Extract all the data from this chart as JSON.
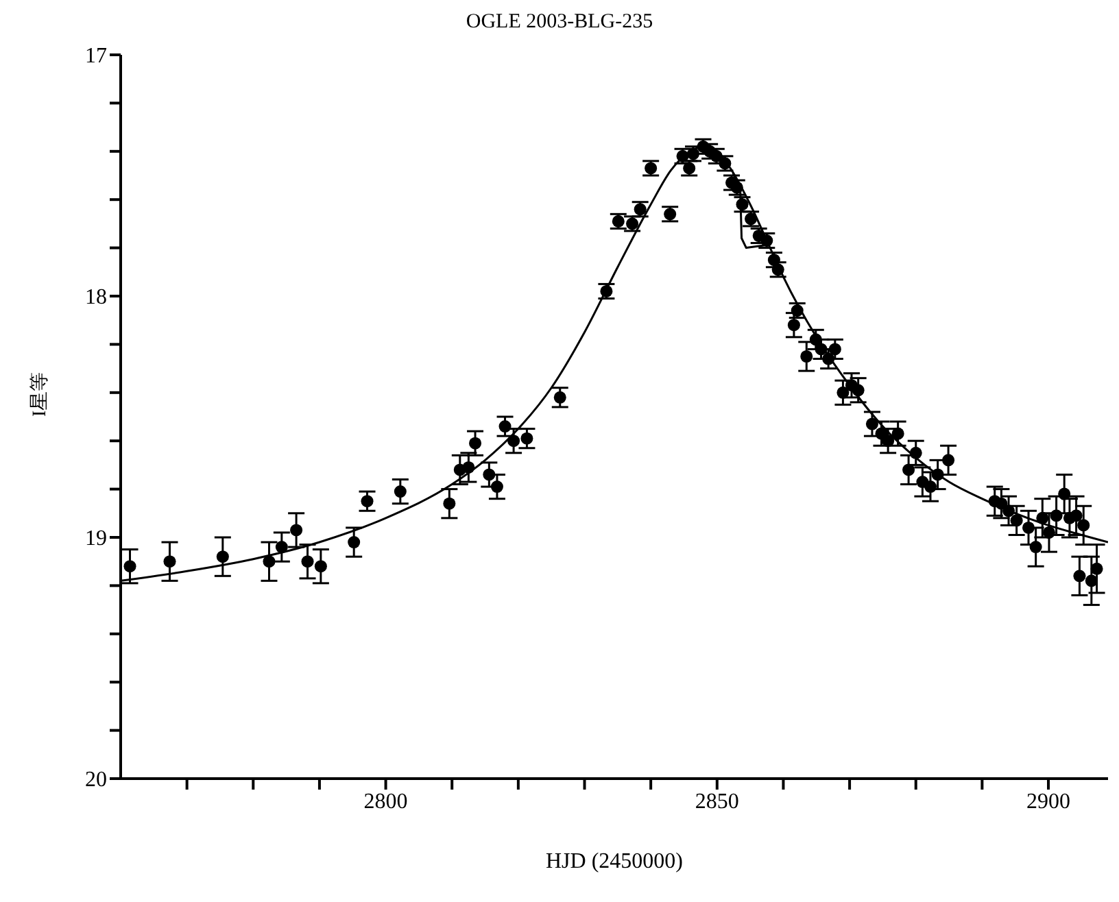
{
  "chart_data": {
    "type": "scatter",
    "title": "OGLE  2003-BLG-235",
    "xlabel": "HJD (2450000)",
    "ylabel": "I星等",
    "xlim": [
      2760,
      2909
    ],
    "xticks": [
      {
        "value": 2770,
        "label": null
      },
      {
        "value": 2780,
        "label": null
      },
      {
        "value": 2790,
        "label": null
      },
      2800,
      {
        "value": 2810,
        "label": null
      },
      {
        "value": 2820,
        "label": null
      },
      {
        "value": 2830,
        "label": null
      },
      {
        "value": 2840,
        "label": null
      },
      2850,
      {
        "value": 2860,
        "label": null
      },
      {
        "value": 2870,
        "label": null
      },
      {
        "value": 2880,
        "label": null
      },
      {
        "value": 2890,
        "label": null
      },
      2900
    ],
    "ylim": [
      20,
      17
    ],
    "yticks": [
      17,
      {
        "value": 17.2,
        "label": null
      },
      {
        "value": 17.4,
        "label": null
      },
      {
        "value": 17.6,
        "label": null
      },
      {
        "value": 17.8,
        "label": null
      },
      18,
      {
        "value": 18.2,
        "label": null
      },
      {
        "value": 18.4,
        "label": null
      },
      {
        "value": 18.6,
        "label": null
      },
      {
        "value": 18.8,
        "label": null
      },
      19,
      {
        "value": 19.2,
        "label": null
      },
      {
        "value": 19.4,
        "label": null
      },
      {
        "value": 19.6,
        "label": null
      },
      {
        "value": 19.8,
        "label": null
      },
      20
    ],
    "series": [
      {
        "marker": "circle",
        "color": "#000000",
        "x": [
          2761.4,
          2767.4,
          2775.4,
          2782.4,
          2784.3,
          2786.5,
          2788.2,
          2790.2,
          2795.2,
          2797.2,
          2802.2,
          2809.6,
          2811.2,
          2812.5,
          2813.5,
          2815.6,
          2816.8,
          2818,
          2819.3,
          2821.3,
          2826.3,
          2833.3,
          2835.1,
          2837.2,
          2838.4,
          2840,
          2842.9,
          2844.8,
          2845.8,
          2846.4,
          2847.9,
          2848.9,
          2849.9,
          2851.2,
          2852.2,
          2853,
          2853.8,
          2855.1,
          2856.3,
          2857.5,
          2858.6,
          2859.2,
          2861.6,
          2862.1,
          2863.5,
          2864.9,
          2865.7,
          2866.8,
          2867.8,
          2869,
          2870.3,
          2871.3,
          2873.4,
          2874.8,
          2875.8,
          2877.3,
          2878.9,
          2880,
          2881,
          2882.2,
          2883.3,
          2884.9,
          2891.9,
          2892.9,
          2894,
          2895.2,
          2897,
          2898.1,
          2899.1,
          2900.1,
          2901.2,
          2902.4,
          2903.2,
          2904.2,
          2904.7,
          2905.3,
          2906.5,
          2907.3
        ],
        "values": [
          19.12,
          19.1,
          19.08,
          19.1,
          19.04,
          18.97,
          19.1,
          19.12,
          19.02,
          18.85,
          18.81,
          18.86,
          18.72,
          18.71,
          18.61,
          18.74,
          18.79,
          18.54,
          18.6,
          18.59,
          18.42,
          17.98,
          17.69,
          17.7,
          17.64,
          17.47,
          17.66,
          17.42,
          17.47,
          17.41,
          17.38,
          17.4,
          17.42,
          17.45,
          17.53,
          17.55,
          17.62,
          17.68,
          17.75,
          17.77,
          17.85,
          17.89,
          18.12,
          18.06,
          18.25,
          18.18,
          18.22,
          18.26,
          18.22,
          18.4,
          18.37,
          18.39,
          18.53,
          18.57,
          18.6,
          18.57,
          18.72,
          18.65,
          18.77,
          18.79,
          18.74,
          18.68,
          18.85,
          18.86,
          18.89,
          18.93,
          18.96,
          19.04,
          18.92,
          18.98,
          18.91,
          18.82,
          18.92,
          18.91,
          19.16,
          18.95,
          19.18,
          19.13
        ],
        "errors": [
          0.07,
          0.08,
          0.08,
          0.08,
          0.06,
          0.07,
          0.07,
          0.07,
          0.06,
          0.04,
          0.05,
          0.06,
          0.06,
          0.06,
          0.05,
          0.05,
          0.05,
          0.04,
          0.05,
          0.04,
          0.04,
          0.03,
          0.03,
          0.03,
          0.03,
          0.03,
          0.03,
          0.03,
          0.03,
          0.03,
          0.03,
          0.03,
          0.03,
          0.03,
          0.03,
          0.03,
          0.03,
          0.03,
          0.03,
          0.03,
          0.03,
          0.03,
          0.05,
          0.03,
          0.06,
          0.04,
          0.04,
          0.04,
          0.04,
          0.05,
          0.05,
          0.05,
          0.05,
          0.05,
          0.05,
          0.05,
          0.06,
          0.05,
          0.06,
          0.06,
          0.06,
          0.06,
          0.06,
          0.06,
          0.06,
          0.06,
          0.07,
          0.08,
          0.08,
          0.08,
          0.08,
          0.08,
          0.08,
          0.08,
          0.08,
          0.08,
          0.1,
          0.1
        ]
      },
      {
        "type": "line",
        "marker": "none",
        "color": "#000000",
        "x": [
          2760,
          2770,
          2780,
          2790,
          2800,
          2810,
          2815,
          2820,
          2825,
          2830,
          2835,
          2840,
          2843,
          2846,
          2848,
          2850,
          2852,
          2855,
          2858,
          2860,
          2865,
          2870,
          2875,
          2880,
          2885,
          2890,
          2895,
          2900,
          2905,
          2909
        ],
        "values": [
          19.18,
          19.14,
          19.09,
          19.02,
          18.92,
          18.78,
          18.68,
          18.55,
          18.38,
          18.15,
          17.88,
          17.62,
          17.48,
          17.4,
          17.38,
          17.4,
          17.47,
          17.62,
          17.8,
          17.92,
          18.17,
          18.37,
          18.54,
          18.67,
          18.77,
          18.84,
          18.9,
          18.95,
          18.99,
          19.02
        ]
      },
      {
        "type": "line",
        "marker": "none",
        "color": "#000000",
        "x": [
          2852.4,
          2853.5,
          2853.7,
          2854.4,
          2857.1
        ],
        "values": [
          17.49,
          17.56,
          17.76,
          17.8,
          17.79
        ]
      }
    ]
  }
}
